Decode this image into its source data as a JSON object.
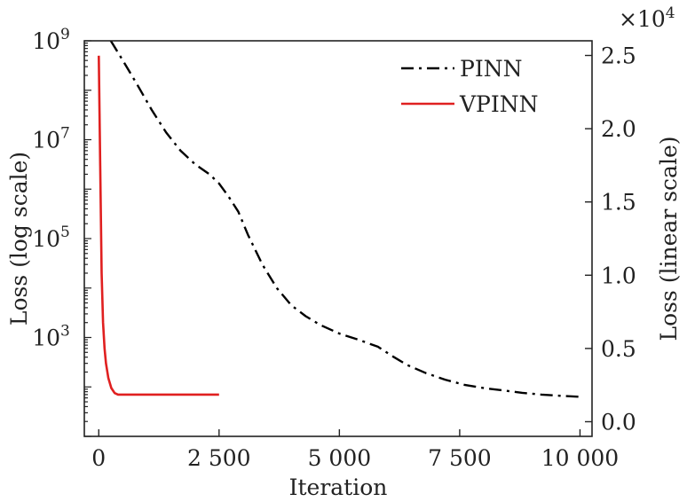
{
  "chart_data": {
    "type": "line",
    "xlabel": "Iteration",
    "ylabel_left": "Loss (log scale)",
    "ylabel_right": "Loss (linear scale)",
    "right_multiplier": "×10",
    "right_multiplier_exp": "4",
    "xlim": [
      -300,
      10250
    ],
    "ylim_left_log": [
      10,
      1000000000
    ],
    "ylim_right": [
      -1000,
      26000
    ],
    "x_ticks": [
      {
        "v": 0,
        "label": "0"
      },
      {
        "v": 2500,
        "label": "2 500"
      },
      {
        "v": 5000,
        "label": "5 000"
      },
      {
        "v": 7500,
        "label": "7 500"
      },
      {
        "v": 10000,
        "label": "10 000"
      }
    ],
    "y_left_ticks": [
      {
        "v": 1000,
        "base": "10",
        "exp": "3"
      },
      {
        "v": 100000,
        "base": "10",
        "exp": "5"
      },
      {
        "v": 10000000,
        "base": "10",
        "exp": "7"
      },
      {
        "v": 1000000000,
        "base": "10",
        "exp": "9"
      }
    ],
    "y_right_ticks": [
      {
        "v": 0,
        "label": "0.0"
      },
      {
        "v": 5000,
        "label": "0.5"
      },
      {
        "v": 10000,
        "label": "1.0"
      },
      {
        "v": 15000,
        "label": "1.5"
      },
      {
        "v": 20000,
        "label": "2.0"
      },
      {
        "v": 25000,
        "label": "2.5"
      }
    ],
    "legend_position": "top-right",
    "series": [
      {
        "name": "PINN",
        "axis": "left-log",
        "color": "#000000",
        "style": "dash-dot",
        "x": [
          250,
          500,
          800,
          1100,
          1400,
          1700,
          2000,
          2300,
          2500,
          2700,
          2900,
          3100,
          3400,
          3700,
          4000,
          4300,
          4600,
          5000,
          5400,
          5800,
          6100,
          6400,
          6800,
          7200,
          7600,
          8000,
          8400,
          8800,
          9200,
          9600,
          10000
        ],
        "y": [
          1000000000,
          400000000,
          130000000,
          40000000,
          14000000,
          6000000,
          3200000,
          2000000,
          1300000,
          700000,
          350000,
          120000,
          30000,
          10000,
          4500,
          2700,
          1800,
          1200,
          900,
          650,
          420,
          280,
          190,
          140,
          110,
          95,
          85,
          76,
          70,
          66,
          63
        ]
      },
      {
        "name": "VPINN",
        "axis": "left-log",
        "color": "#e02020",
        "style": "solid",
        "x": [
          0,
          30,
          60,
          90,
          120,
          150,
          200,
          260,
          330,
          400,
          600,
          1000,
          1500,
          2000,
          2500
        ],
        "y": [
          500000000,
          3000000,
          20000,
          2000,
          600,
          300,
          150,
          95,
          75,
          70,
          70,
          70,
          70,
          70,
          70
        ]
      }
    ]
  }
}
